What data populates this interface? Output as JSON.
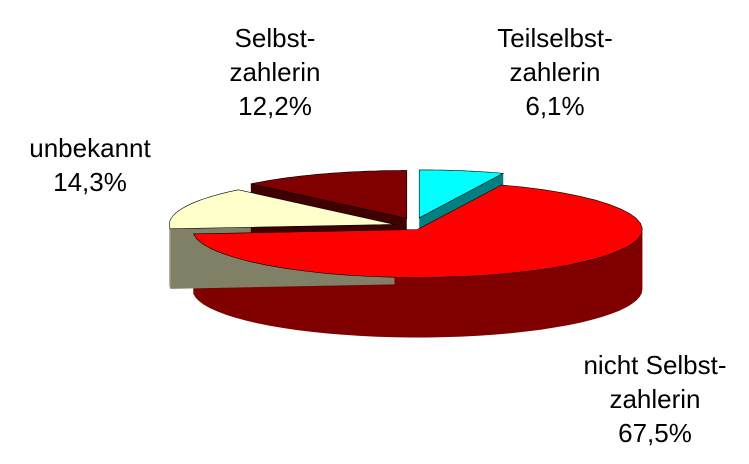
{
  "chart_data": {
    "type": "pie3d",
    "categories": [
      [
        "Teilselbst-",
        "zahlerin"
      ],
      [
        "nicht Selbst-",
        "zahlerin"
      ],
      [
        "unbekannt"
      ],
      [
        "Selbst-",
        "zahlerin"
      ]
    ],
    "values": [
      6.1,
      67.5,
      14.3,
      12.2
    ],
    "value_labels": [
      "6,1%",
      "67,5%",
      "14,3%",
      "12,2%"
    ],
    "colors": [
      "#00ffff",
      "#ff0000",
      "#ffffcc",
      "#800000"
    ]
  }
}
